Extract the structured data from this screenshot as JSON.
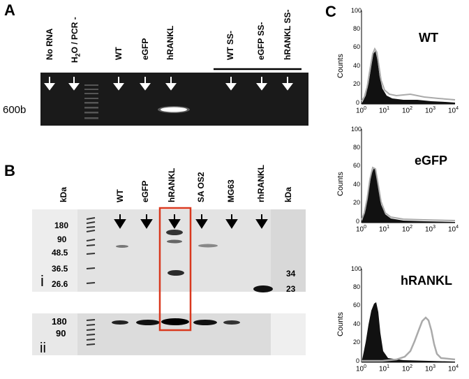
{
  "panelA": {
    "letter": "A",
    "lanes": [
      {
        "label": "No RNA"
      },
      {
        "label": "H2O / PCR -"
      },
      {
        "label": "WT"
      },
      {
        "label": "eGFP"
      },
      {
        "label": "hRANKL"
      },
      {
        "label": "WT SS-"
      },
      {
        "label": "eGFP SS-"
      },
      {
        "label": "hRANKL SS-"
      }
    ],
    "size_marker": "600b"
  },
  "panelB": {
    "letter": "B",
    "kda_left": "kDa",
    "kda_right": "kDa",
    "lanes": [
      {
        "label": "WT"
      },
      {
        "label": "eGFP"
      },
      {
        "label": "hRANKL"
      },
      {
        "label": "SA OS2"
      },
      {
        "label": "MG63"
      },
      {
        "label": "rhRANKL"
      }
    ],
    "markers_i": [
      "180",
      "90",
      "48.5",
      "36.5",
      "26.6"
    ],
    "markers_right": [
      "34",
      "23"
    ],
    "markers_ii": [
      "180",
      "90"
    ],
    "sub_i": "i",
    "sub_ii": "ii",
    "highlight_color": "#d9381e"
  },
  "panelC": {
    "letter": "C",
    "histograms": [
      {
        "title": "WT",
        "ylabel": "Counts",
        "yticks": [
          "0",
          "20",
          "40",
          "60",
          "80",
          "100"
        ],
        "xticks": [
          "10",
          "1",
          "10",
          "2",
          "10",
          "3",
          "10",
          "4"
        ]
      },
      {
        "title": "eGFP",
        "ylabel": "Counts",
        "yticks": [
          "0",
          "20",
          "40",
          "60",
          "80",
          "100"
        ]
      },
      {
        "title": "hRANKL",
        "ylabel": "Counts",
        "yticks": [
          "0",
          "20",
          "40",
          "60",
          "80",
          "100"
        ]
      }
    ],
    "xtick_base": "10",
    "xtick_exps": [
      "0",
      "1",
      "2",
      "3",
      "4"
    ]
  }
}
